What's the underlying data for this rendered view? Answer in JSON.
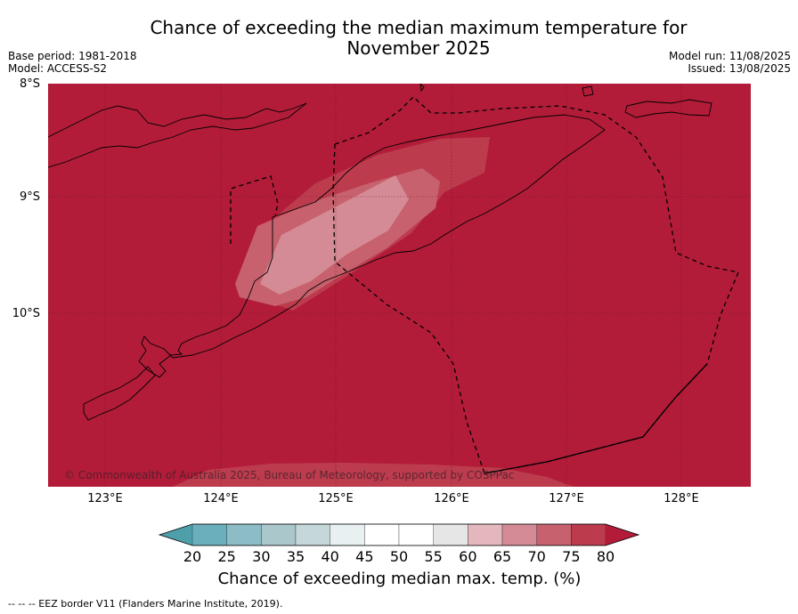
{
  "title_line1": "Chance of exceeding the median maximum temperature for",
  "title_line2": "November 2025",
  "base_period": "Base period: 1981-2018",
  "model": "Model: ACCESS-S2",
  "model_run": "Model run: 11/08/2025",
  "issued": "Issued: 13/08/2025",
  "lat_labels": [
    "8°S",
    "9°S",
    "10°S"
  ],
  "lon_labels": [
    "123°E",
    "124°E",
    "125°E",
    "126°E",
    "127°E",
    "128°E"
  ],
  "copyright": "© Commonwealth of Australia 2025, Bureau of Meteorology, supported by COSPPac",
  "colorbar": {
    "ticks": [
      "20",
      "25",
      "30",
      "35",
      "40",
      "45",
      "50",
      "55",
      "60",
      "65",
      "70",
      "75",
      "80"
    ],
    "colors": [
      "#4f9fab",
      "#6aafbb",
      "#8cbcc5",
      "#aac7cc",
      "#c6d7da",
      "#e8f0f1",
      "#ffffff",
      "#ffffff",
      "#e6e6e6",
      "#e4b7be",
      "#d48b95",
      "#c7616d",
      "#bc3c4d",
      "#b21c39"
    ],
    "label": "Chance of exceeding median max. temp. (%)"
  },
  "map_colors": {
    "background": "#b21c39",
    "band_75_80": "#bc3c4d",
    "band_70_75": "#c7616d",
    "band_65_70": "#d48b95"
  },
  "footnote": "--  --  -- EEZ border V11 (Flanders Marine Institute, 2019)."
}
